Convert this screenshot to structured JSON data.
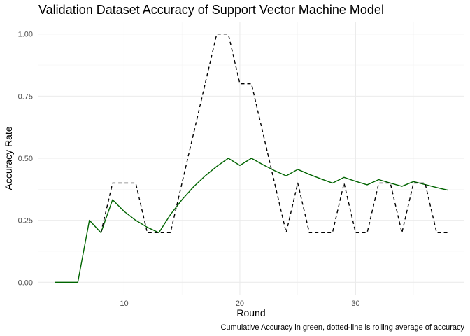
{
  "chart_data": {
    "type": "line",
    "title": "Validation Dataset Accuracy of Support Vector Machine Model",
    "xlabel": "Round",
    "ylabel": "Accuracy Rate",
    "caption": "Cumulative Accuracy in green, dotted-line is rolling average of accuracy",
    "xlim": [
      2.6,
      39.4
    ],
    "ylim": [
      -0.05,
      1.05
    ],
    "x_ticks": [
      10,
      20,
      30
    ],
    "x_tick_labels": [
      "10",
      "20",
      "30"
    ],
    "y_ticks": [
      0,
      0.25,
      0.5,
      0.75,
      1.0
    ],
    "y_tick_labels": [
      "0.00",
      "0.25",
      "0.50",
      "0.75",
      "1.00"
    ],
    "grid": true,
    "series": [
      {
        "color": "#006400",
        "dash": "solid",
        "x": [
          4,
          5,
          6,
          7,
          8,
          9,
          10,
          11,
          12,
          13,
          14,
          15,
          16,
          17,
          18,
          19,
          20,
          21,
          22,
          23,
          24,
          25,
          26,
          27,
          28,
          29,
          30,
          31,
          32,
          33,
          34,
          35,
          36,
          37,
          38
        ],
        "values": [
          0,
          0,
          0,
          0.25,
          0.2,
          0.333,
          0.286,
          0.25,
          0.222,
          0.2,
          0.273,
          0.333,
          0.385,
          0.429,
          0.467,
          0.5,
          0.471,
          0.5,
          0.474,
          0.45,
          0.429,
          0.455,
          0.435,
          0.417,
          0.4,
          0.423,
          0.407,
          0.393,
          0.414,
          0.4,
          0.387,
          0.406,
          0.394,
          0.382,
          0.371
        ]
      },
      {
        "color": "#000000",
        "dash": "dashed",
        "x": [
          8,
          9,
          10,
          11,
          12,
          13,
          14,
          15,
          16,
          17,
          18,
          19,
          20,
          21,
          22,
          23,
          24,
          25,
          26,
          27,
          28,
          29,
          30,
          31,
          32,
          33,
          34,
          35,
          36,
          37,
          38
        ],
        "values": [
          0.2,
          0.4,
          0.4,
          0.4,
          0.2,
          0.2,
          0.2,
          0.4,
          0.6,
          0.8,
          1.0,
          1.0,
          0.8,
          0.8,
          0.6,
          0.4,
          0.2,
          0.4,
          0.2,
          0.2,
          0.2,
          0.4,
          0.2,
          0.2,
          0.4,
          0.4,
          0.2,
          0.4,
          0.4,
          0.2,
          0.2
        ]
      }
    ]
  }
}
